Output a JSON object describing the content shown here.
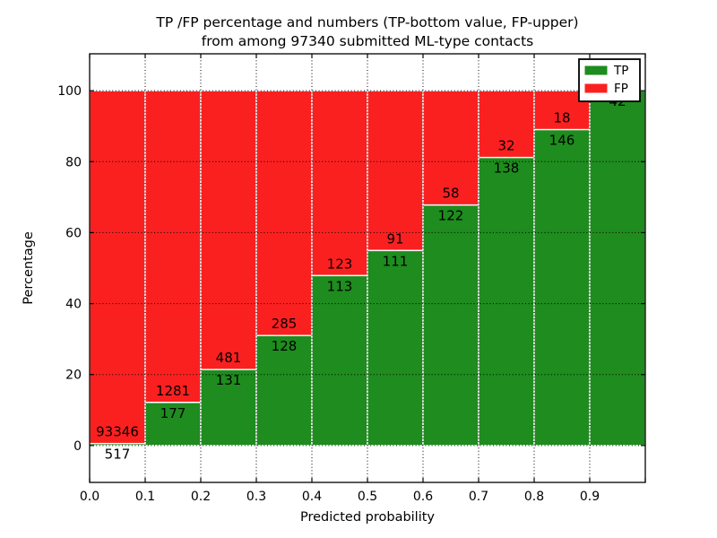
{
  "title": {
    "line1": "TP /FP percentage and numbers (TP-bottom value, FP-upper)",
    "line2": "from among 97340 submitted ML-type contacts"
  },
  "axes": {
    "xlabel": "Predicted probability",
    "ylabel": "Percentage",
    "x_tick_labels": [
      "0.0",
      "0.1",
      "0.2",
      "0.3",
      "0.4",
      "0.5",
      "0.6",
      "0.7",
      "0.8",
      "0.9"
    ],
    "x_tick_values": [
      0.0,
      0.1,
      0.2,
      0.3,
      0.4,
      0.5,
      0.6,
      0.7,
      0.8,
      0.9
    ],
    "y_tick_labels": [
      "0",
      "20",
      "40",
      "60",
      "80",
      "100"
    ],
    "y_tick_values": [
      0,
      20,
      40,
      60,
      80,
      100
    ],
    "xlim": [
      0.0,
      1.0
    ],
    "ylim": [
      -10.4,
      110.4
    ],
    "grid": "dotted"
  },
  "legend": {
    "position": "upper-right",
    "items": [
      {
        "label": "TP",
        "color": "#1e8c1e"
      },
      {
        "label": "FP",
        "color": "#fb2020"
      }
    ]
  },
  "colors": {
    "tp": "#1e8c1e",
    "fp": "#fb2020",
    "bar_edge": "#ffffff",
    "grid": "#000000",
    "spine": "#000000",
    "text": "#000000",
    "background": "#ffffff"
  },
  "chart_data": {
    "type": "bar",
    "subtype": "stacked-normalized-100",
    "title": "TP /FP percentage and numbers (TP-bottom value, FP-upper) from among 97340 submitted ML-type contacts",
    "xlabel": "Predicted probability",
    "ylabel": "Percentage",
    "total_contacts": 97340,
    "bin_width": 0.1,
    "categories": [
      "0.0-0.1",
      "0.1-0.2",
      "0.2-0.3",
      "0.3-0.4",
      "0.4-0.5",
      "0.5-0.6",
      "0.6-0.7",
      "0.7-0.8",
      "0.8-0.9",
      "0.9-1.0"
    ],
    "series": [
      {
        "name": "TP",
        "color": "#1e8c1e",
        "values": [
          517,
          177,
          131,
          128,
          113,
          111,
          122,
          138,
          146,
          42
        ]
      },
      {
        "name": "FP",
        "color": "#fb2020",
        "values": [
          93346,
          1281,
          481,
          285,
          123,
          91,
          58,
          32,
          18,
          0
        ]
      }
    ],
    "bins": [
      {
        "x0": 0.0,
        "x1": 0.1,
        "tp": 517,
        "fp": 93346,
        "tp_label": "517",
        "fp_label": "93346",
        "fp_label_visible": true
      },
      {
        "x0": 0.1,
        "x1": 0.2,
        "tp": 177,
        "fp": 1281,
        "tp_label": "177",
        "fp_label": "1281",
        "fp_label_visible": true
      },
      {
        "x0": 0.2,
        "x1": 0.3,
        "tp": 131,
        "fp": 481,
        "tp_label": "131",
        "fp_label": "481",
        "fp_label_visible": true
      },
      {
        "x0": 0.3,
        "x1": 0.4,
        "tp": 128,
        "fp": 285,
        "tp_label": "128",
        "fp_label": "285",
        "fp_label_visible": true
      },
      {
        "x0": 0.4,
        "x1": 0.5,
        "tp": 113,
        "fp": 123,
        "tp_label": "113",
        "fp_label": "123",
        "fp_label_visible": true
      },
      {
        "x0": 0.5,
        "x1": 0.6,
        "tp": 111,
        "fp": 91,
        "tp_label": "111",
        "fp_label": "91",
        "fp_label_visible": true
      },
      {
        "x0": 0.6,
        "x1": 0.7,
        "tp": 122,
        "fp": 58,
        "tp_label": "122",
        "fp_label": "58",
        "fp_label_visible": true
      },
      {
        "x0": 0.7,
        "x1": 0.8,
        "tp": 138,
        "fp": 32,
        "tp_label": "138",
        "fp_label": "32",
        "fp_label_visible": true
      },
      {
        "x0": 0.8,
        "x1": 0.9,
        "tp": 146,
        "fp": 18,
        "tp_label": "146",
        "fp_label": "18",
        "fp_label_visible": true
      },
      {
        "x0": 0.9,
        "x1": 1.0,
        "tp": 42,
        "fp": 0,
        "tp_label": "42",
        "fp_label": "",
        "fp_label_visible": false
      }
    ]
  }
}
